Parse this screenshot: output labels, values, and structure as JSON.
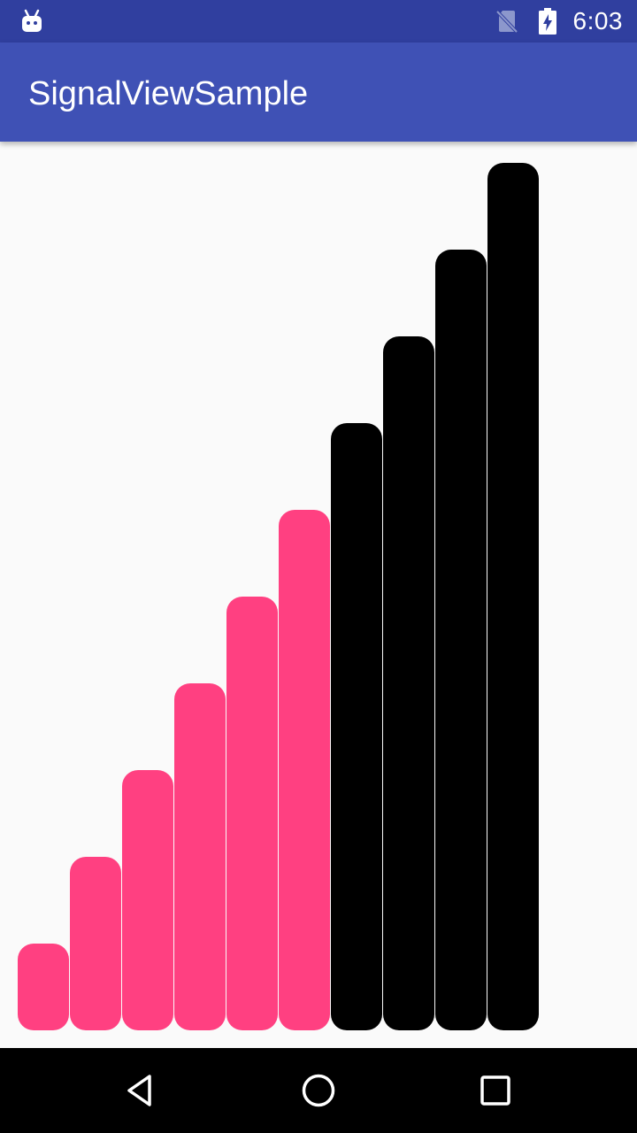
{
  "status_bar": {
    "time": "6:03",
    "icons": [
      "android-debug-icon",
      "no-sim-icon",
      "battery-charging-icon"
    ]
  },
  "app_bar": {
    "title": "SignalViewSample"
  },
  "signal_view": {
    "total_bars": 10,
    "active_bars": 6,
    "levels": [
      1,
      2,
      3,
      4,
      5,
      6,
      7,
      8,
      9,
      10
    ],
    "active_color": "#ff4081",
    "inactive_color": "#000000"
  },
  "nav_bar": {
    "buttons": [
      "back-icon",
      "home-icon",
      "recents-icon"
    ]
  },
  "colors": {
    "status_bar": "#303f9f",
    "app_bar": "#3f51b5",
    "background": "#fafafa"
  }
}
